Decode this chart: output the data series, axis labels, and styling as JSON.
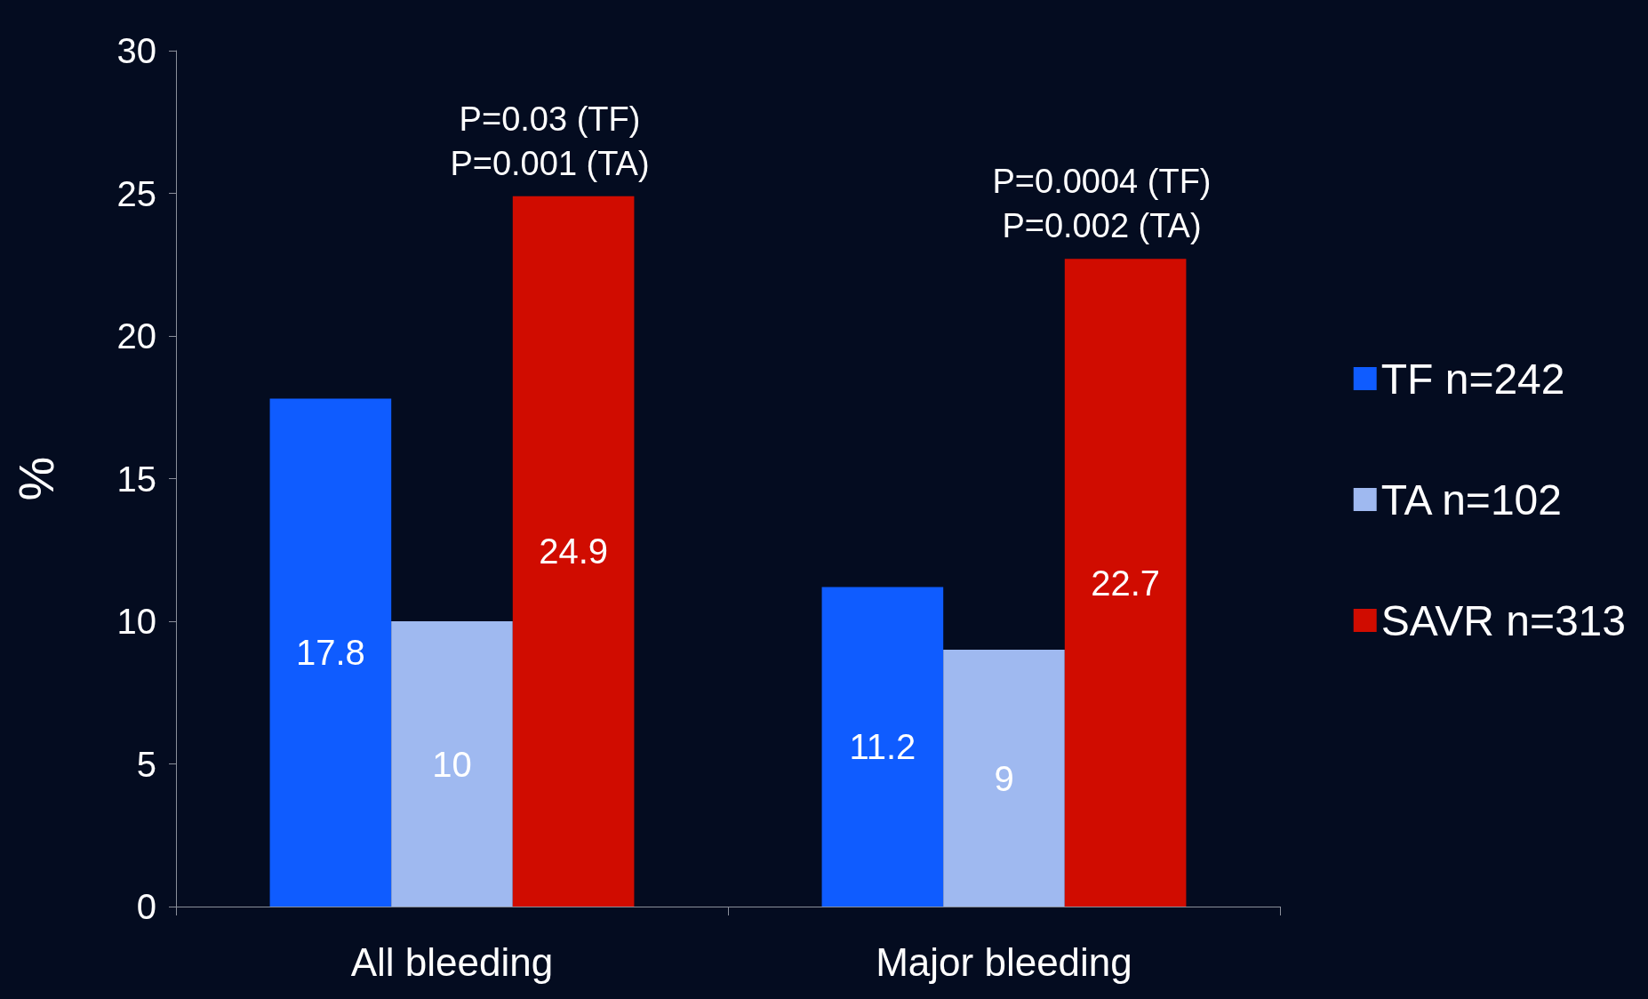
{
  "chart_data": {
    "type": "bar",
    "ylabel": "%",
    "categories": [
      "All bleeding",
      "Major bleeding"
    ],
    "series": [
      {
        "name": "TF n=242",
        "color": "#0f5cff",
        "values": [
          17.8,
          11.2
        ]
      },
      {
        "name": "TA n=102",
        "color": "#9fb9f0",
        "values": [
          10,
          9
        ]
      },
      {
        "name": "SAVR n=313",
        "color": "#d00c00",
        "values": [
          24.9,
          22.7
        ]
      }
    ],
    "ylim": [
      0,
      30
    ],
    "yticks": [
      0,
      5,
      10,
      15,
      20,
      25,
      30
    ],
    "grid": false,
    "legend": "right",
    "data_labels": true,
    "annotations": [
      "P=0.03 (TF)\nP=0.001 (TA)",
      "P=0.0004 (TF)\nP=0.002 (TA)"
    ]
  }
}
